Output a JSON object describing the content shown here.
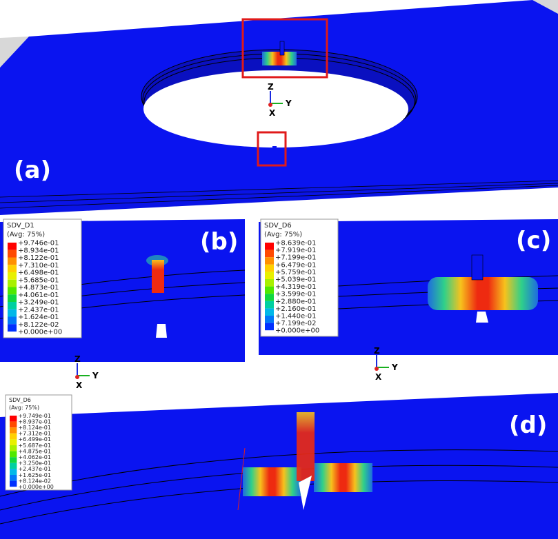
{
  "panels": [
    {
      "label": "(a)"
    },
    {
      "label": "(b)"
    },
    {
      "label": "(c)"
    },
    {
      "label": "(d)"
    }
  ],
  "triads": [
    {
      "z": "Z",
      "y": "Y",
      "x": "X"
    },
    {
      "z": "Z",
      "y": "Y",
      "x": "X"
    },
    {
      "z": "Z",
      "y": "Y",
      "x": "X"
    }
  ],
  "legends": [
    {
      "title": "SDV_D1",
      "subtitle": "(Avg: 75%)",
      "entries": [
        "+9.746e-01",
        "+8.934e-01",
        "+8.122e-01",
        "+7.310e-01",
        "+6.498e-01",
        "+5.685e-01",
        "+4.873e-01",
        "+4.061e-01",
        "+3.249e-01",
        "+2.437e-01",
        "+1.624e-01",
        "+8.122e-02",
        "+0.000e+00"
      ]
    },
    {
      "title": "SDV_D6",
      "subtitle": "(Avg: 75%)",
      "entries": [
        "+8.639e-01",
        "+7.919e-01",
        "+7.199e-01",
        "+6.479e-01",
        "+5.759e-01",
        "+5.039e-01",
        "+4.319e-01",
        "+3.599e-01",
        "+2.880e-01",
        "+2.160e-01",
        "+1.440e-01",
        "+7.199e-02",
        "+0.000e+00"
      ]
    },
    {
      "title": "SDV_D6",
      "subtitle": "(Avg: 75%)",
      "entries": [
        "+9.749e-01",
        "+8.937e-01",
        "+8.124e-01",
        "+7.312e-01",
        "+6.499e-01",
        "+5.687e-01",
        "+4.875e-01",
        "+4.062e-01",
        "+3.250e-01",
        "+2.437e-01",
        "+1.625e-01",
        "+8.124e-02",
        "+0.000e+00"
      ]
    }
  ]
}
